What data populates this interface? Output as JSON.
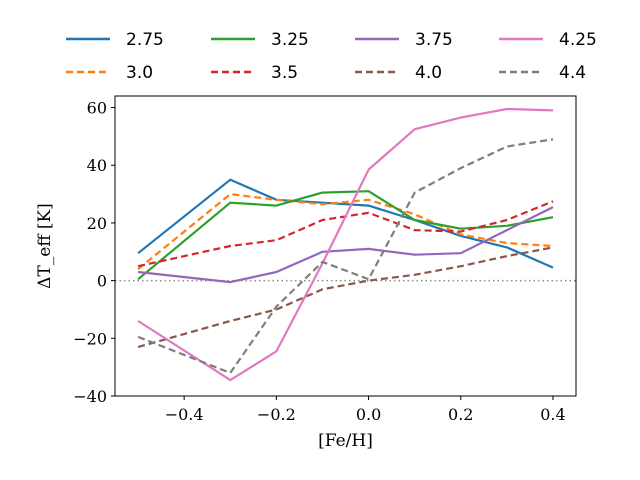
{
  "chart_data": {
    "type": "line",
    "title": "",
    "xlabel": "[Fe/H]",
    "ylabel": "ΔT_eff [K]",
    "xlim": [
      -0.55,
      0.45
    ],
    "ylim": [
      -40,
      64
    ],
    "xticks": [
      -0.4,
      -0.2,
      0.0,
      0.2,
      0.4
    ],
    "xtick_labels": [
      "−0.4",
      "−0.2",
      "0.0",
      "0.2",
      "0.4"
    ],
    "yticks": [
      -40,
      -20,
      0,
      20,
      40,
      60
    ],
    "ytick_labels": [
      "−40",
      "−20",
      "0",
      "20",
      "40",
      "60"
    ],
    "reference_line": {
      "y": 0,
      "style": "dotted",
      "color": "#888888"
    },
    "legend_position": "top, above plot",
    "x": [
      -0.5,
      -0.3,
      -0.2,
      -0.1,
      0.0,
      0.1,
      0.2,
      0.3,
      0.4
    ],
    "series": [
      {
        "name": "2.75",
        "color": "#1f77b4",
        "dash": "solid",
        "values": [
          9.5,
          35,
          28,
          27,
          26,
          21,
          15.5,
          11.5,
          4.5
        ]
      },
      {
        "name": "3.0",
        "color": "#ff7f0e",
        "dash": "dashed",
        "values": [
          4,
          30,
          28,
          26.5,
          28,
          23,
          16,
          13,
          12
        ]
      },
      {
        "name": "3.25",
        "color": "#2ca02c",
        "dash": "solid",
        "values": [
          0.5,
          27,
          26,
          30.5,
          31,
          21,
          18,
          19,
          22
        ]
      },
      {
        "name": "3.5",
        "color": "#d62728",
        "dash": "dashed",
        "values": [
          5,
          12,
          14,
          21,
          23.5,
          17.5,
          17,
          21,
          27.5
        ]
      },
      {
        "name": "3.75",
        "color": "#9467bd",
        "dash": "solid",
        "values": [
          3,
          -0.5,
          3,
          10,
          11,
          9,
          9.5,
          17.5,
          25.5
        ]
      },
      {
        "name": "4.0",
        "color": "#8c564b",
        "dash": "dashed",
        "values": [
          -23,
          -14,
          -10,
          -3,
          0,
          2,
          5,
          8.5,
          11.5
        ]
      },
      {
        "name": "4.25",
        "color": "#e377c2",
        "dash": "solid",
        "values": [
          -14,
          -34.5,
          -24.5,
          6,
          38.5,
          52.5,
          56.5,
          59.5,
          59
        ]
      },
      {
        "name": "4.4",
        "color": "#7f7f7f",
        "dash": "dashed",
        "values": [
          -19.5,
          -32,
          -9,
          6.5,
          0.5,
          30.5,
          39,
          46.5,
          49
        ]
      }
    ]
  }
}
